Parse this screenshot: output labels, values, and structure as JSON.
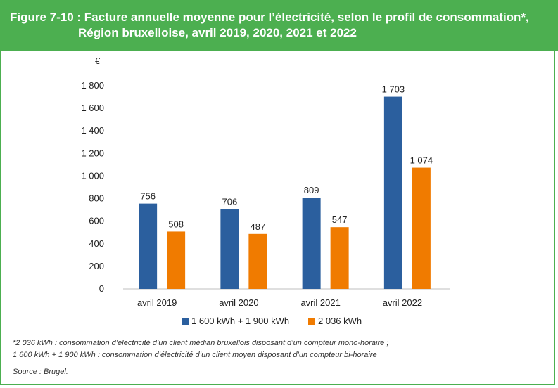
{
  "header": {
    "title_line1": "Figure 7-10 : Facture annuelle moyenne pour l’électricité, selon le profil de consommation*,",
    "title_line2": "Région bruxelloise, avril 2019, 2020, 2021 et 2022"
  },
  "chart_data": {
    "type": "bar",
    "ylabel": "€",
    "xlabel": "",
    "ylim": [
      0,
      1800
    ],
    "yticks": [
      0,
      200,
      400,
      600,
      800,
      1000,
      1200,
      1400,
      1600,
      1800
    ],
    "ytick_labels": [
      "0",
      "200",
      "400",
      "600",
      "800",
      "1 000",
      "1 200",
      "1 400",
      "1 600",
      "1 800"
    ],
    "categories": [
      "avril 2019",
      "avril 2020",
      "avril 2021",
      "avril 2022"
    ],
    "series": [
      {
        "name": "1 600 kWh + 1 900 kWh",
        "color": "#2b5f9e",
        "values": [
          756,
          706,
          809,
          1703
        ],
        "labels": [
          "756",
          "706",
          "809",
          "1 703"
        ]
      },
      {
        "name": "2 036 kWh",
        "color": "#f07b00",
        "values": [
          508,
          487,
          547,
          1074
        ],
        "labels": [
          "508",
          "487",
          "547",
          "1 074"
        ]
      }
    ],
    "grid": false,
    "legend": "bottom-center"
  },
  "footnotes": {
    "line1": "*2 036 kWh : consommation d’électricité d’un client médian bruxellois disposant d’un compteur mono-horaire ;",
    "line2": "1 600 kWh + 1 900 kWh : consommation d’électricité d’un client moyen disposant d’un compteur bi-horaire",
    "source": "Source : Brugel."
  }
}
